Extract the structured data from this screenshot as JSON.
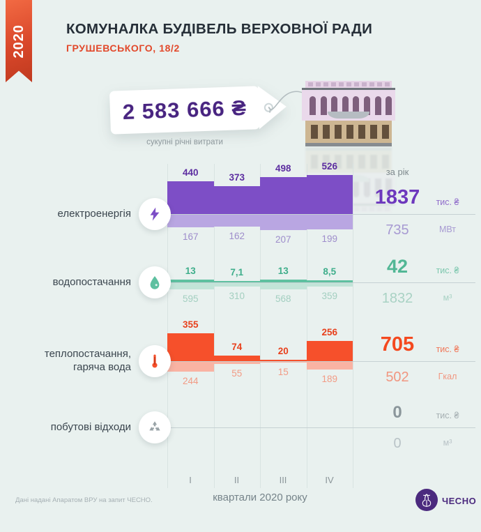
{
  "meta": {
    "year": "2020"
  },
  "header": {
    "title": "КОМУНАЛКА БУДІВЕЛЬ ВЕРХОВНОЇ РАДИ",
    "subtitle": "ГРУШЕВСЬКОГО, 18/2"
  },
  "price_tag": {
    "amount": "2 583 666 ₴",
    "caption": "сукупні річні витрати"
  },
  "chart_data": {
    "type": "bar",
    "title": "Комуналка будівель Верховної Ради, Грушевського 18/2",
    "categories": [
      "I",
      "II",
      "III",
      "IV"
    ],
    "x_caption": "квартали 2020 року",
    "annual_label": "за рік",
    "legend_position": "right",
    "rows": [
      {
        "label": "електроенергія",
        "icon": "lightning-icon",
        "cost": {
          "values": [
            "440",
            "373",
            "498",
            "526"
          ],
          "total": "1837",
          "unit": "тис. ₴"
        },
        "usage": {
          "values": [
            "167",
            "162",
            "207",
            "199"
          ],
          "total": "735",
          "unit": "МВт"
        },
        "palette": {
          "bar": "#7d4ec6",
          "bar_light": "#b9a6e2",
          "value": "#5c2da0",
          "value_light": "#9e8dcb",
          "total": "#6d38bd",
          "total_light": "#a79ad2"
        }
      },
      {
        "label": "водопостачання",
        "icon": "water-drop-icon",
        "cost": {
          "values": [
            "13",
            "7,1",
            "13",
            "8,5"
          ],
          "total": "42",
          "unit": "тис. ₴"
        },
        "usage": {
          "values": [
            "595",
            "310",
            "568",
            "359"
          ],
          "total": "1832",
          "unit": "м³"
        },
        "palette": {
          "bar": "#5ec0a0",
          "bar_light": "#c2e4d8",
          "value": "#3fae8b",
          "value_light": "#a3cfc0",
          "total": "#52b795",
          "total_light": "#a9d2c4"
        }
      },
      {
        "label": "теплопостачання, гаряча вода",
        "icon": "thermometer-icon",
        "cost": {
          "values": [
            "355",
            "74",
            "20",
            "256"
          ],
          "total": "705",
          "unit": "тис. ₴"
        },
        "usage": {
          "values": [
            "244",
            "55",
            "15",
            "189"
          ],
          "total": "502",
          "unit": "Гкал"
        },
        "palette": {
          "bar": "#f6502b",
          "bar_light": "#f9b3a3",
          "value": "#e8401c",
          "value_light": "#f29b85",
          "total": "#f4491f",
          "total_light": "#f19680"
        }
      },
      {
        "label": "побутові відходи",
        "icon": "recycle-icon",
        "cost": {
          "values": [],
          "total": "0",
          "unit": "тис. ₴"
        },
        "usage": {
          "values": [],
          "total": "0",
          "unit": "м³"
        },
        "palette": {
          "bar": "#9aa4a8",
          "bar_light": "#c3cdd0",
          "value": "#9aa4a8",
          "value_light": "#b9c3c7",
          "total": "#8b969b",
          "total_light": "#b9c3c7"
        }
      }
    ]
  },
  "footer": {
    "note": "Дані надані Апаратом ВРУ на запит ЧЕСНО.",
    "logo_text": "ЧЕСНО"
  }
}
